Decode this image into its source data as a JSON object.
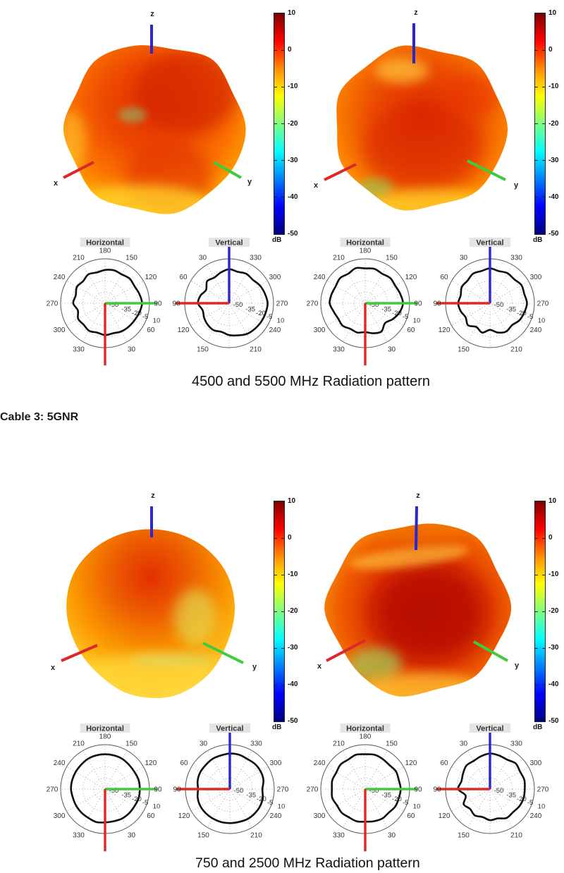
{
  "heading": "Cable 3: 5GNR",
  "sections": [
    {
      "caption": "4500 and 5500 MHz Radiation pattern"
    },
    {
      "caption": "750 and 2500 MHz Radiation pattern"
    }
  ],
  "labels_3d": {
    "x": "x",
    "y": "y",
    "z": "z"
  },
  "palette": {
    "x_axis": "#dd2828",
    "y_axis": "#3ecc3e",
    "z_axis": "#2828cc",
    "curve": "#101010",
    "grid": "#999999",
    "jet_stops": [
      [
        "#7f0000",
        0
      ],
      [
        "#ff0000",
        12.5
      ],
      [
        "#ff8c00",
        25
      ],
      [
        "#ffff00",
        37.5
      ],
      [
        "#7fff7f",
        50
      ],
      [
        "#00ffff",
        62.5
      ],
      [
        "#0080ff",
        75
      ],
      [
        "#0000ff",
        87.5
      ],
      [
        "#00007f",
        100
      ]
    ]
  },
  "colorbar": {
    "unit": "dB",
    "max": 10,
    "min": -50,
    "ticks": [
      10,
      0,
      -10,
      -20,
      -30,
      -40,
      -50
    ]
  },
  "polar_templates": {
    "radial_ticks": [
      -50,
      -35,
      -20,
      -5,
      10
    ],
    "radial_range": [
      -50,
      10
    ],
    "ring_step_db": 15,
    "horizontal": {
      "title": "Horizontal",
      "angle_labels": [
        [
          180,
          90
        ],
        [
          210,
          120
        ],
        [
          240,
          150
        ],
        [
          270,
          180
        ],
        [
          300,
          210
        ],
        [
          330,
          240
        ],
        [
          30,
          300
        ],
        [
          60,
          330
        ],
        [
          90,
          0
        ],
        [
          120,
          30
        ],
        [
          150,
          60
        ]
      ],
      "axes": [
        {
          "color_key": "y_axis",
          "phi": 0,
          "len_frac": 1.17
        },
        {
          "color_key": "x_axis",
          "phi": 270,
          "len_frac": 1.4
        }
      ]
    },
    "vertical": {
      "title": "Vertical",
      "angle_labels": [
        [
          30,
          120
        ],
        [
          60,
          150
        ],
        [
          90,
          180
        ],
        [
          120,
          210
        ],
        [
          150,
          240
        ],
        [
          210,
          300
        ],
        [
          240,
          330
        ],
        [
          270,
          0
        ],
        [
          300,
          30
        ],
        [
          330,
          60
        ]
      ],
      "axes": [
        {
          "color_key": "z_axis",
          "phi": 90,
          "len_frac": 1.27
        },
        {
          "color_key": "x_axis",
          "phi": 180,
          "len_frac": 1.21
        }
      ]
    }
  },
  "chart_data": [
    {
      "id": "horizontal-4500mhz",
      "type": "polar",
      "plot": "horizontal",
      "frequency": "4500 MHz",
      "unit": "dB",
      "radial_range": [
        -50,
        10
      ],
      "screen_angle_step_deg": 15,
      "screen_angle_zero": "east-ccw",
      "db": [
        0,
        -2,
        -4,
        -3,
        -5,
        -4,
        -5,
        -7,
        -5,
        -8,
        -6,
        -9,
        -7,
        -12,
        -8,
        -9,
        -7,
        -9,
        -7,
        -8,
        -6,
        -5,
        -4,
        -2
      ]
    },
    {
      "id": "vertical-4500mhz",
      "type": "polar",
      "plot": "vertical",
      "frequency": "4500 MHz",
      "unit": "dB",
      "radial_range": [
        -50,
        10
      ],
      "screen_angle_step_deg": 15,
      "screen_angle_zero": "east-ccw",
      "db": [
        2,
        0,
        -2,
        -5,
        -4,
        -6,
        -4,
        -7,
        -10,
        -8,
        -14,
        -10,
        -8,
        -13,
        -11,
        -9,
        -8,
        -10,
        -7,
        -5,
        -2,
        -1,
        0,
        1
      ]
    },
    {
      "id": "horizontal-5500mhz",
      "type": "polar",
      "plot": "horizontal",
      "frequency": "5500 MHz",
      "unit": "dB",
      "radial_range": [
        -50,
        10
      ],
      "screen_angle_step_deg": 15,
      "screen_angle_zero": "east-ccw",
      "db": [
        1,
        -1,
        -3,
        -2,
        -4,
        -2,
        -3,
        -1,
        -4,
        -2,
        -4,
        -3,
        -2,
        -6,
        -8,
        -7,
        -10,
        -9,
        -11,
        -8,
        -6,
        -12,
        -7,
        -2
      ]
    },
    {
      "id": "vertical-5500mhz",
      "type": "polar",
      "plot": "vertical",
      "frequency": "5500 MHz",
      "unit": "dB",
      "radial_range": [
        -50,
        10
      ],
      "screen_angle_step_deg": 15,
      "screen_angle_zero": "east-ccw",
      "db": [
        0,
        -2,
        -1,
        -4,
        -3,
        -5,
        -3,
        -5,
        -4,
        -7,
        -6,
        -9,
        -7,
        -9,
        -12,
        -8,
        -13,
        -9,
        -14,
        -9,
        -6,
        -8,
        -4,
        -2
      ]
    },
    {
      "id": "horizontal-750mhz",
      "type": "polar",
      "plot": "horizontal",
      "frequency": "750 MHz",
      "unit": "dB",
      "radial_range": [
        -50,
        10
      ],
      "screen_angle_step_deg": 15,
      "screen_angle_zero": "east-ccw",
      "db": [
        -3,
        -3,
        -4,
        -4,
        -3,
        -3,
        -3,
        -3,
        -3,
        -4,
        -4,
        -4,
        -4,
        -5,
        -5,
        -5,
        -5,
        -4,
        -5,
        -5,
        -4,
        -4,
        -4,
        -3
      ]
    },
    {
      "id": "vertical-750mhz",
      "type": "polar",
      "plot": "vertical",
      "frequency": "750 MHz",
      "unit": "dB",
      "radial_range": [
        -50,
        10
      ],
      "screen_angle_step_deg": 15,
      "screen_angle_zero": "east-ccw",
      "db": [
        -6,
        -3,
        -2,
        -2,
        -3,
        -2,
        -2,
        -3,
        -3,
        -4,
        -4,
        -5,
        -7,
        -5,
        -4,
        -4,
        -4,
        -4,
        -4,
        -4,
        -3,
        -3,
        -3,
        -4
      ]
    },
    {
      "id": "horizontal-2500mhz",
      "type": "polar",
      "plot": "horizontal",
      "frequency": "2500 MHz",
      "unit": "dB",
      "radial_range": [
        -50,
        10
      ],
      "screen_angle_step_deg": 15,
      "screen_angle_zero": "east-ccw",
      "db": [
        -2,
        -3,
        -2,
        -4,
        -3,
        -2,
        -3,
        -2,
        -4,
        -3,
        -5,
        -4,
        -5,
        -4,
        -6,
        -5,
        -6,
        -5,
        -6,
        -5,
        -4,
        -5,
        -3,
        -3
      ]
    },
    {
      "id": "vertical-2500mhz",
      "type": "polar",
      "plot": "vertical",
      "frequency": "2500 MHz",
      "unit": "dB",
      "radial_range": [
        -50,
        10
      ],
      "screen_angle_step_deg": 15,
      "screen_angle_zero": "east-ccw",
      "db": [
        -3,
        -2,
        -3,
        -1,
        -4,
        -3,
        -2,
        -4,
        -6,
        -5,
        -8,
        -10,
        -7,
        -16,
        -9,
        -12,
        -9,
        -11,
        -8,
        -9,
        -5,
        -6,
        -4,
        -3
      ]
    },
    {
      "id": "surface-4500mhz",
      "type": "3d-surface",
      "frequency": "4500 MHz",
      "axes": [
        "x",
        "y",
        "z"
      ],
      "colorbar_db_range": [
        -50,
        10
      ]
    },
    {
      "id": "surface-5500mhz",
      "type": "3d-surface",
      "frequency": "5500 MHz",
      "axes": [
        "x",
        "y",
        "z"
      ],
      "colorbar_db_range": [
        -50,
        10
      ]
    },
    {
      "id": "surface-750mhz",
      "type": "3d-surface",
      "frequency": "750 MHz",
      "axes": [
        "x",
        "y",
        "z"
      ],
      "colorbar_db_range": [
        -50,
        10
      ]
    },
    {
      "id": "surface-2500mhz",
      "type": "3d-surface",
      "frequency": "2500 MHz",
      "axes": [
        "x",
        "y",
        "z"
      ],
      "colorbar_db_range": [
        -50,
        10
      ]
    }
  ]
}
